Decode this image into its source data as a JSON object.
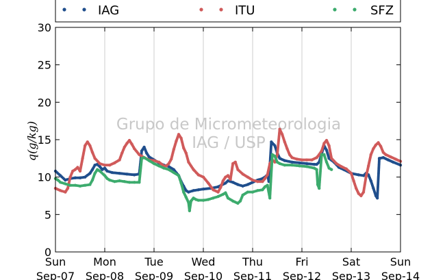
{
  "chart_data": {
    "type": "scatter",
    "ylabel": "q(g/kg)",
    "ylim": [
      0,
      30
    ],
    "yticks": [
      0,
      5,
      10,
      15,
      20,
      25,
      30
    ],
    "xlim": [
      0,
      7
    ],
    "x_unit": "days",
    "xtick_days": [
      "Sun",
      "Mon",
      "Tue",
      "Wed",
      "Thu",
      "Fri",
      "Sat",
      "Sun"
    ],
    "xtick_dates": [
      "Sep-07",
      "Sep-08",
      "Sep-09",
      "Sep-10",
      "Sep-11",
      "Sep-12",
      "Sep-13",
      "Sep-14"
    ],
    "grid": "vertical",
    "legend_position": "top",
    "watermark": [
      "Grupo de Micrometeorologia",
      "IAG / USP"
    ],
    "series": [
      {
        "name": "IAG",
        "color": "#1f4e8c",
        "points": [
          [
            0.0,
            10.8
          ],
          [
            0.1,
            10.2
          ],
          [
            0.2,
            9.6
          ],
          [
            0.3,
            9.8
          ],
          [
            0.4,
            9.9
          ],
          [
            0.5,
            9.9
          ],
          [
            0.6,
            10.0
          ],
          [
            0.7,
            10.5
          ],
          [
            0.75,
            11.0
          ],
          [
            0.8,
            11.6
          ],
          [
            0.85,
            11.7
          ],
          [
            0.9,
            11.4
          ],
          [
            0.95,
            11.0
          ],
          [
            1.0,
            11.2
          ],
          [
            1.05,
            10.8
          ],
          [
            1.15,
            10.6
          ],
          [
            1.3,
            10.5
          ],
          [
            1.45,
            10.4
          ],
          [
            1.6,
            10.3
          ],
          [
            1.7,
            10.4
          ],
          [
            1.75,
            13.5
          ],
          [
            1.8,
            14.0
          ],
          [
            1.85,
            13.2
          ],
          [
            1.9,
            12.7
          ],
          [
            2.0,
            12.3
          ],
          [
            2.1,
            11.9
          ],
          [
            2.2,
            11.6
          ],
          [
            2.3,
            11.4
          ],
          [
            2.4,
            11.0
          ],
          [
            2.5,
            10.2
          ],
          [
            2.55,
            9.4
          ],
          [
            2.6,
            8.8
          ],
          [
            2.65,
            8.2
          ],
          [
            2.7,
            8.0
          ],
          [
            2.8,
            8.2
          ],
          [
            2.9,
            8.3
          ],
          [
            3.0,
            8.4
          ],
          [
            3.15,
            8.5
          ],
          [
            3.3,
            8.7
          ],
          [
            3.45,
            9.2
          ],
          [
            3.5,
            9.5
          ],
          [
            3.6,
            9.3
          ],
          [
            3.7,
            9.0
          ],
          [
            3.8,
            8.8
          ],
          [
            3.9,
            9.0
          ],
          [
            4.0,
            9.3
          ],
          [
            4.1,
            9.6
          ],
          [
            4.2,
            9.8
          ],
          [
            4.25,
            10.0
          ],
          [
            4.3,
            10.3
          ],
          [
            4.33,
            9.4
          ],
          [
            4.38,
            14.7
          ],
          [
            4.45,
            14.2
          ],
          [
            4.5,
            13.2
          ],
          [
            4.55,
            12.5
          ],
          [
            4.65,
            12.2
          ],
          [
            4.8,
            12.0
          ],
          [
            4.95,
            11.9
          ],
          [
            5.1,
            11.8
          ],
          [
            5.25,
            11.7
          ],
          [
            5.3,
            11.7
          ],
          [
            5.35,
            12.0
          ],
          [
            5.45,
            14.2
          ],
          [
            5.5,
            13.6
          ],
          [
            5.55,
            12.5
          ],
          [
            5.65,
            12.0
          ],
          [
            5.75,
            11.3
          ],
          [
            5.85,
            11.0
          ],
          [
            6.0,
            10.5
          ],
          [
            6.15,
            10.3
          ],
          [
            6.25,
            10.2
          ],
          [
            6.3,
            10.5
          ],
          [
            6.35,
            10.3
          ],
          [
            6.4,
            9.5
          ],
          [
            6.45,
            8.5
          ],
          [
            6.5,
            7.5
          ],
          [
            6.53,
            7.2
          ],
          [
            6.57,
            12.5
          ],
          [
            6.65,
            12.6
          ],
          [
            6.75,
            12.3
          ],
          [
            6.85,
            12.0
          ],
          [
            7.0,
            11.6
          ]
        ]
      },
      {
        "name": "ITU",
        "color": "#d05a5a",
        "points": [
          [
            0.0,
            8.5
          ],
          [
            0.1,
            8.2
          ],
          [
            0.2,
            8.0
          ],
          [
            0.25,
            8.5
          ],
          [
            0.3,
            10.0
          ],
          [
            0.35,
            10.8
          ],
          [
            0.4,
            11.0
          ],
          [
            0.45,
            11.3
          ],
          [
            0.5,
            10.8
          ],
          [
            0.55,
            12.5
          ],
          [
            0.6,
            14.2
          ],
          [
            0.65,
            14.7
          ],
          [
            0.7,
            14.2
          ],
          [
            0.75,
            13.3
          ],
          [
            0.8,
            12.5
          ],
          [
            0.9,
            11.8
          ],
          [
            1.0,
            11.6
          ],
          [
            1.1,
            11.6
          ],
          [
            1.2,
            11.9
          ],
          [
            1.3,
            12.3
          ],
          [
            1.35,
            13.2
          ],
          [
            1.4,
            14.0
          ],
          [
            1.45,
            14.5
          ],
          [
            1.5,
            14.9
          ],
          [
            1.55,
            14.4
          ],
          [
            1.6,
            13.8
          ],
          [
            1.7,
            13.0
          ],
          [
            1.8,
            12.6
          ],
          [
            1.9,
            12.3
          ],
          [
            2.0,
            12.2
          ],
          [
            2.1,
            12.0
          ],
          [
            2.2,
            11.5
          ],
          [
            2.25,
            11.5
          ],
          [
            2.3,
            11.8
          ],
          [
            2.35,
            12.4
          ],
          [
            2.4,
            13.7
          ],
          [
            2.45,
            14.8
          ],
          [
            2.5,
            15.7
          ],
          [
            2.55,
            15.2
          ],
          [
            2.6,
            13.9
          ],
          [
            2.65,
            13.2
          ],
          [
            2.7,
            12.0
          ],
          [
            2.8,
            11.0
          ],
          [
            2.9,
            10.3
          ],
          [
            3.0,
            10.0
          ],
          [
            3.1,
            9.2
          ],
          [
            3.2,
            8.3
          ],
          [
            3.3,
            8.0
          ],
          [
            3.35,
            8.6
          ],
          [
            3.4,
            9.5
          ],
          [
            3.45,
            10.0
          ],
          [
            3.5,
            10.2
          ],
          [
            3.55,
            9.7
          ],
          [
            3.6,
            11.8
          ],
          [
            3.65,
            12.0
          ],
          [
            3.7,
            11.0
          ],
          [
            3.8,
            10.4
          ],
          [
            3.9,
            10.0
          ],
          [
            4.0,
            9.6
          ],
          [
            4.1,
            9.4
          ],
          [
            4.2,
            9.4
          ],
          [
            4.25,
            9.8
          ],
          [
            4.3,
            10.3
          ],
          [
            4.35,
            11.8
          ],
          [
            4.4,
            12.3
          ],
          [
            4.45,
            12.0
          ],
          [
            4.5,
            13.0
          ],
          [
            4.55,
            16.4
          ],
          [
            4.6,
            15.7
          ],
          [
            4.65,
            14.7
          ],
          [
            4.7,
            13.8
          ],
          [
            4.75,
            13.0
          ],
          [
            4.8,
            12.6
          ],
          [
            4.9,
            12.4
          ],
          [
            5.0,
            12.3
          ],
          [
            5.1,
            12.3
          ],
          [
            5.2,
            12.3
          ],
          [
            5.3,
            12.6
          ],
          [
            5.35,
            13.0
          ],
          [
            5.4,
            13.5
          ],
          [
            5.45,
            14.5
          ],
          [
            5.5,
            14.9
          ],
          [
            5.55,
            14.2
          ],
          [
            5.6,
            12.5
          ],
          [
            5.7,
            11.8
          ],
          [
            5.8,
            11.4
          ],
          [
            5.9,
            11.1
          ],
          [
            6.0,
            10.5
          ],
          [
            6.05,
            9.5
          ],
          [
            6.1,
            8.5
          ],
          [
            6.15,
            7.8
          ],
          [
            6.2,
            7.5
          ],
          [
            6.25,
            8.0
          ],
          [
            6.3,
            10.0
          ],
          [
            6.35,
            11.5
          ],
          [
            6.4,
            13.0
          ],
          [
            6.45,
            13.8
          ],
          [
            6.5,
            14.3
          ],
          [
            6.55,
            14.6
          ],
          [
            6.6,
            14.1
          ],
          [
            6.65,
            13.3
          ],
          [
            6.7,
            13.0
          ],
          [
            6.8,
            12.7
          ],
          [
            6.9,
            12.4
          ],
          [
            7.0,
            12.1
          ]
        ]
      },
      {
        "name": "SFZ",
        "color": "#3cab6d",
        "points": [
          [
            0.0,
            9.8
          ],
          [
            0.05,
            9.6
          ],
          [
            0.1,
            9.3
          ],
          [
            0.2,
            9.1
          ],
          [
            0.3,
            8.9
          ],
          [
            0.4,
            8.9
          ],
          [
            0.5,
            8.8
          ],
          [
            0.6,
            8.9
          ],
          [
            0.7,
            9.0
          ],
          [
            0.75,
            9.6
          ],
          [
            0.8,
            10.5
          ],
          [
            0.85,
            11.0
          ],
          [
            0.9,
            10.8
          ],
          [
            1.0,
            10.2
          ],
          [
            1.05,
            9.8
          ],
          [
            1.1,
            9.6
          ],
          [
            1.2,
            9.4
          ],
          [
            1.3,
            9.5
          ],
          [
            1.4,
            9.4
          ],
          [
            1.5,
            9.3
          ],
          [
            1.6,
            9.3
          ],
          [
            1.7,
            9.3
          ],
          [
            1.75,
            12.5
          ],
          [
            1.8,
            12.6
          ],
          [
            1.9,
            12.2
          ],
          [
            2.0,
            11.8
          ],
          [
            2.1,
            11.5
          ],
          [
            2.2,
            11.2
          ],
          [
            2.3,
            11.0
          ],
          [
            2.4,
            10.6
          ],
          [
            2.5,
            10.2
          ],
          [
            2.55,
            9.2
          ],
          [
            2.6,
            8.0
          ],
          [
            2.65,
            7.3
          ],
          [
            2.7,
            6.6
          ],
          [
            2.72,
            5.5
          ],
          [
            2.75,
            6.8
          ],
          [
            2.8,
            7.2
          ],
          [
            2.85,
            7.0
          ],
          [
            2.9,
            6.9
          ],
          [
            3.0,
            6.9
          ],
          [
            3.1,
            7.0
          ],
          [
            3.2,
            7.2
          ],
          [
            3.3,
            7.4
          ],
          [
            3.4,
            7.7
          ],
          [
            3.45,
            7.9
          ],
          [
            3.5,
            7.2
          ],
          [
            3.6,
            6.8
          ],
          [
            3.7,
            6.5
          ],
          [
            3.75,
            6.8
          ],
          [
            3.8,
            7.6
          ],
          [
            3.9,
            8.0
          ],
          [
            4.0,
            8.0
          ],
          [
            4.1,
            8.2
          ],
          [
            4.2,
            8.3
          ],
          [
            4.25,
            8.7
          ],
          [
            4.3,
            8.9
          ],
          [
            4.35,
            7.2
          ],
          [
            4.4,
            13.0
          ],
          [
            4.45,
            12.8
          ],
          [
            4.5,
            12.0
          ],
          [
            4.55,
            11.8
          ],
          [
            4.65,
            11.6
          ],
          [
            4.8,
            11.6
          ],
          [
            4.95,
            11.5
          ],
          [
            5.1,
            11.4
          ],
          [
            5.25,
            11.2
          ],
          [
            5.3,
            11.0
          ],
          [
            5.32,
            9.0
          ],
          [
            5.35,
            8.5
          ],
          [
            5.4,
            13.0
          ],
          [
            5.45,
            13.0
          ],
          [
            5.5,
            12.0
          ],
          [
            5.55,
            11.2
          ],
          [
            5.6,
            11.0
          ]
        ]
      }
    ]
  }
}
